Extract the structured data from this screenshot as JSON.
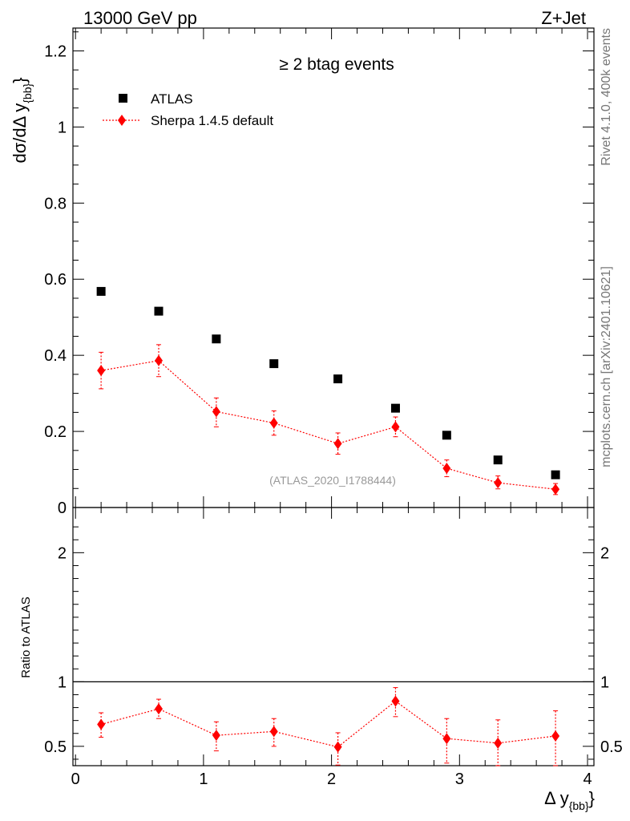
{
  "header": {
    "left": "13000 GeV pp",
    "right": "Z+Jet"
  },
  "side_labels": {
    "rivet": "Rivet 4.1.0,  400k events",
    "mcplots": "mcplots.cern.ch [arXiv:2401.10621]"
  },
  "chart_data": [
    {
      "type": "scatter",
      "panel": "main",
      "title": "≥ 2 btag events",
      "watermark": "(ATLAS_2020_I1788444)",
      "ylabel_main": "dσ/dΔ y",
      "ylabel_sub": "{bb}",
      "ylim": [
        0,
        1.26
      ],
      "yticks": [
        0,
        0.2,
        0.4,
        0.6,
        0.8,
        1,
        1.2
      ],
      "ytick_labels": [
        "0",
        "0.2",
        "0.4",
        "0.6",
        "0.8",
        "1",
        "1.2"
      ],
      "xlim": [
        -0.02,
        4.05
      ],
      "legend": [
        {
          "label": "ATLAS",
          "style": "black-square"
        },
        {
          "label": "Sherpa 1.4.5 default",
          "style": "red-diamond-dotted"
        }
      ],
      "series": [
        {
          "name": "ATLAS",
          "color": "#000000",
          "x": [
            0.2,
            0.65,
            1.1,
            1.55,
            2.05,
            2.5,
            2.9,
            3.3,
            3.75
          ],
          "y": [
            0.568,
            0.516,
            0.443,
            0.378,
            0.338,
            0.261,
            0.19,
            0.125,
            0.086
          ]
        },
        {
          "name": "Sherpa 1.4.5 default",
          "color": "#ff0000",
          "x": [
            0.2,
            0.65,
            1.1,
            1.55,
            2.05,
            2.5,
            2.9,
            3.3,
            3.75
          ],
          "y": [
            0.36,
            0.386,
            0.252,
            0.222,
            0.168,
            0.212,
            0.103,
            0.065,
            0.048
          ],
          "err_up": [
            0.048,
            0.042,
            0.036,
            0.032,
            0.028,
            0.026,
            0.022,
            0.018,
            0.015
          ],
          "err_down": [
            0.048,
            0.042,
            0.04,
            0.032,
            0.028,
            0.026,
            0.022,
            0.016,
            0.014
          ]
        }
      ]
    },
    {
      "type": "scatter",
      "panel": "ratio",
      "ylabel": "Ratio to ATLAS",
      "ylim": [
        0.35,
        2.35
      ],
      "yticks": [
        0.5,
        1,
        2
      ],
      "ytick_labels": [
        "0.5",
        "1",
        "2"
      ],
      "xlim": [
        -0.02,
        4.05
      ],
      "xticks": [
        0,
        1,
        2,
        3,
        4
      ],
      "xtick_labels": [
        "0",
        "1",
        "2",
        "3",
        "4"
      ],
      "xlabel_main": "Δ y",
      "xlabel_sub": "{bb}",
      "reference_line": 1,
      "series": [
        {
          "name": "Sherpa 1.4.5 default",
          "color": "#ff0000",
          "x": [
            0.2,
            0.65,
            1.1,
            1.55,
            2.05,
            2.5,
            2.9,
            3.3,
            3.75
          ],
          "y": [
            0.67,
            0.79,
            0.585,
            0.615,
            0.495,
            0.85,
            0.56,
            0.525,
            0.58
          ],
          "err_up": [
            0.09,
            0.075,
            0.105,
            0.1,
            0.11,
            0.105,
            0.155,
            0.18,
            0.195
          ],
          "err_down": [
            0.1,
            0.075,
            0.12,
            0.115,
            0.14,
            0.12,
            0.19,
            0.2,
            0.25
          ]
        }
      ]
    }
  ]
}
